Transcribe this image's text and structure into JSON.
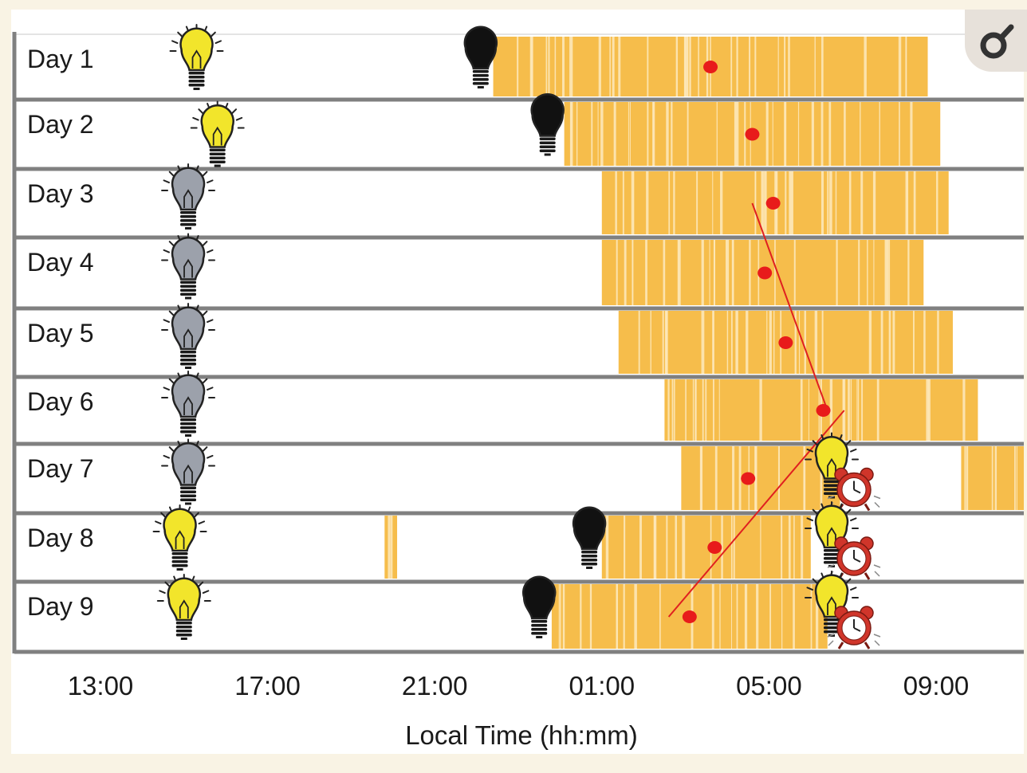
{
  "chart_data": {
    "type": "raster",
    "xlabel": "Local Time (hh:mm)",
    "x_tick_labels": [
      "13:00",
      "17:00",
      "21:00",
      "01:00",
      "05:00",
      "09:00"
    ],
    "x_tick_hours": [
      13,
      17,
      21,
      25,
      29,
      33
    ],
    "xlim_hours": [
      11,
      35
    ],
    "rows": [
      {
        "label": "Day 1",
        "light_on": 15.3,
        "light_off": 22.1,
        "sleep": [
          [
            22.4,
            32.8
          ]
        ],
        "midpoint": 27.6,
        "alarm": false
      },
      {
        "label": "Day 2",
        "light_on": 15.8,
        "light_off": 23.7,
        "sleep": [
          [
            24.1,
            33.1
          ]
        ],
        "midpoint": 28.6,
        "alarm": false
      },
      {
        "label": "Day 3",
        "light_on": 15.1,
        "light_off": null,
        "sleep": [
          [
            25.0,
            33.3
          ]
        ],
        "midpoint": 29.1,
        "alarm": false
      },
      {
        "label": "Day 4",
        "light_on": 15.1,
        "light_off": null,
        "sleep": [
          [
            25.0,
            32.7
          ]
        ],
        "midpoint": 28.9,
        "alarm": false
      },
      {
        "label": "Day 5",
        "light_on": 15.1,
        "light_off": null,
        "sleep": [
          [
            25.4,
            33.4
          ]
        ],
        "midpoint": 29.4,
        "alarm": false
      },
      {
        "label": "Day 6",
        "light_on": 15.1,
        "light_off": null,
        "sleep": [
          [
            26.5,
            34.0
          ]
        ],
        "midpoint": 30.3,
        "alarm": false
      },
      {
        "label": "Day 7",
        "light_on": 15.1,
        "light_off": null,
        "sleep": [
          [
            26.9,
            30.7
          ],
          [
            33.6,
            35.4
          ]
        ],
        "midpoint": 28.5,
        "alarm": true
      },
      {
        "label": "Day 8",
        "light_on": 14.9,
        "light_off": 24.7,
        "sleep": [
          [
            19.8,
            20.1
          ],
          [
            25.0,
            30.0
          ]
        ],
        "midpoint": 27.7,
        "alarm": true
      },
      {
        "label": "Day 9",
        "light_on": 15.0,
        "light_off": 23.5,
        "sleep": [
          [
            23.8,
            30.4
          ]
        ],
        "midpoint": 27.1,
        "alarm": true
      }
    ],
    "trend_lines": [
      {
        "from": {
          "day": 3,
          "hour": 28.6
        },
        "to": {
          "day": 6,
          "hour": 30.4
        }
      },
      {
        "from": {
          "day": 9,
          "hour": 26.6
        },
        "to": {
          "day": 6,
          "hour": 30.8
        }
      }
    ],
    "colors": {
      "sleep": "#f6bd4b",
      "gap": "#fde7b8",
      "midpoint": "#e81b1b",
      "trend": "#e02020",
      "row_line": "#808080",
      "bulb_on": "#f2e52b",
      "bulb_off": "#111111",
      "bulb_dim": "#9ca1ab",
      "alarm": "#d0352a"
    },
    "icons": {
      "light_on": "lit-bulb-icon",
      "light_off": "dark-bulb-icon",
      "dim": "grey-bulb-icon",
      "alarm": "alarm-clock-icon"
    }
  }
}
